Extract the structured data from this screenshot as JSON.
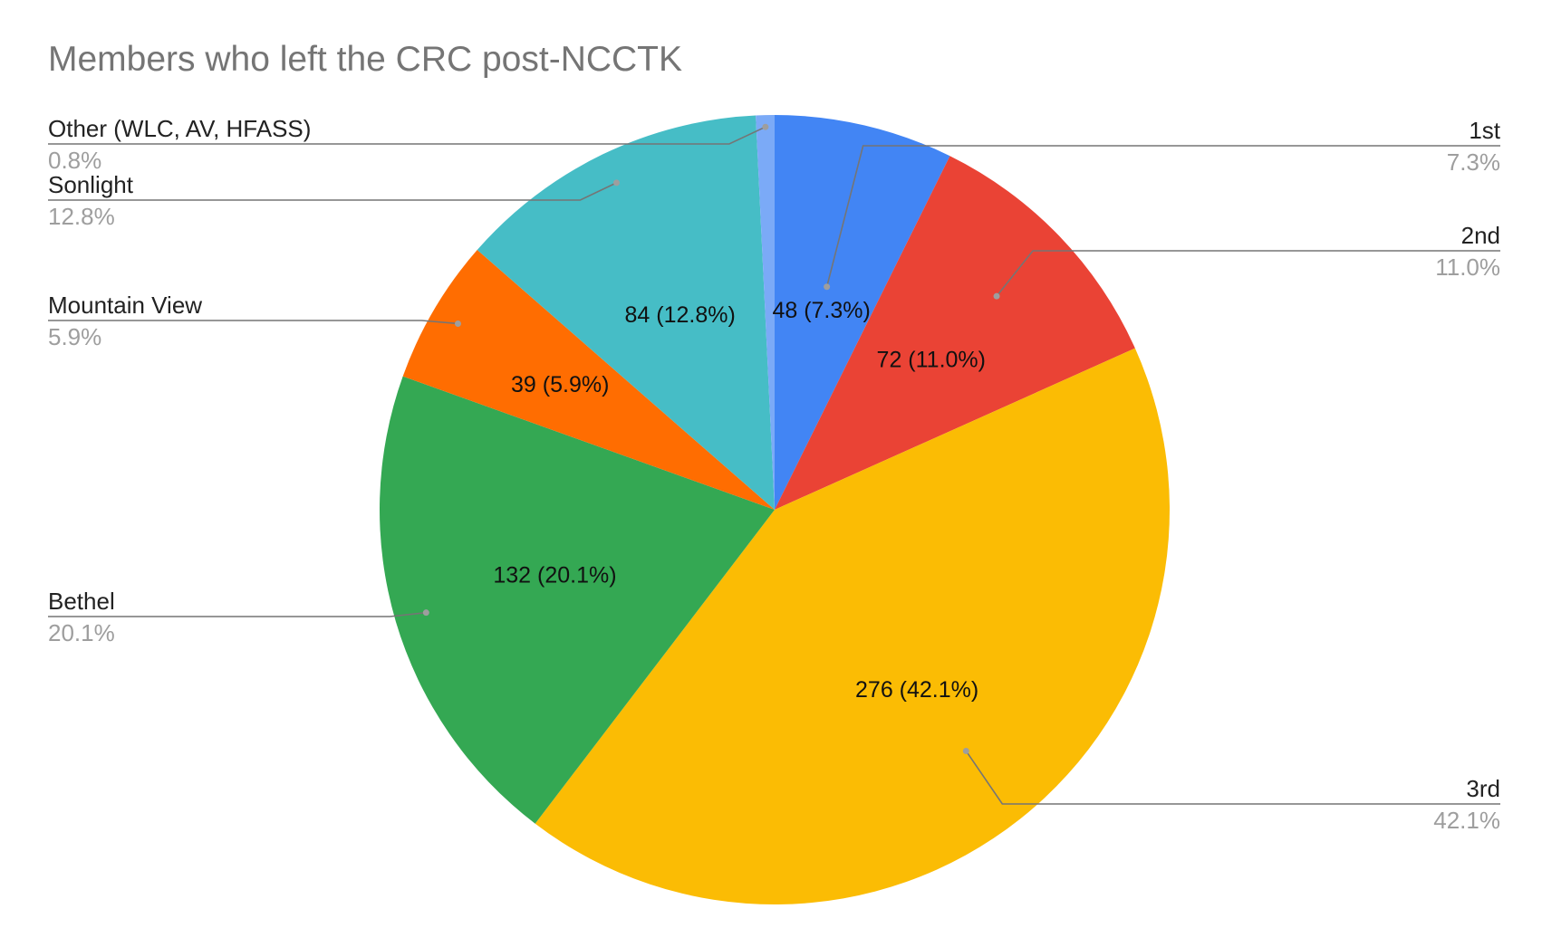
{
  "chart_data": {
    "type": "pie",
    "title": "Members who left the CRC post-NCCTK",
    "slices": [
      {
        "name": "1st",
        "value": 48,
        "percent_label": "7.3%",
        "slice_label": "48 (7.3%)",
        "color": "#4285f4"
      },
      {
        "name": "2nd",
        "value": 72,
        "percent_label": "11.0%",
        "slice_label": "72 (11.0%)",
        "color": "#ea4335"
      },
      {
        "name": "3rd",
        "value": 276,
        "percent_label": "42.1%",
        "slice_label": "276 (42.1%)",
        "color": "#fbbc04"
      },
      {
        "name": "Bethel",
        "value": 132,
        "percent_label": "20.1%",
        "slice_label": "132 (20.1%)",
        "color": "#34a853"
      },
      {
        "name": "Mountain View",
        "value": 39,
        "percent_label": "5.9%",
        "slice_label": "39 (5.9%)",
        "color": "#ff6d01"
      },
      {
        "name": "Sonlight",
        "value": 84,
        "percent_label": "12.8%",
        "slice_label": "84 (12.8%)",
        "color": "#46bdc6"
      },
      {
        "name": "Other (WLC, AV, HFASS)",
        "value": 5,
        "percent_label": "0.8%",
        "slice_label": "",
        "color": "#7baaf7"
      }
    ]
  }
}
